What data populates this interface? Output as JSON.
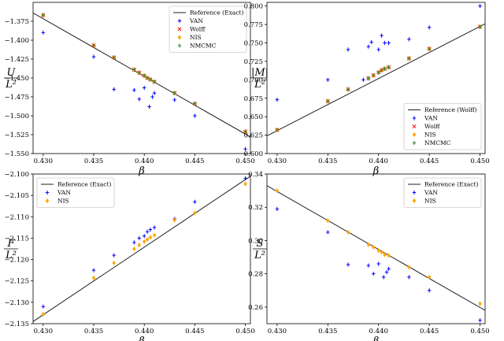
{
  "chart_data": [
    {
      "type": "scatter",
      "xlabel": "β",
      "ylabel_num": "U",
      "ylabel_den": "L²",
      "xlim": [
        0.429,
        0.4505
      ],
      "ylim": [
        -1.55,
        -1.35
      ],
      "xticks": [
        "0.430",
        "0.435",
        "0.440",
        "0.445",
        "0.450"
      ],
      "yticks": [
        "−1.375",
        "−1.400",
        "−1.425",
        "−1.450",
        "−1.475",
        "−1.500",
        "−1.525",
        "−1.550"
      ],
      "ytick_values": [
        -1.375,
        -1.4,
        -1.425,
        -1.45,
        -1.475,
        -1.5,
        -1.525,
        -1.55
      ],
      "legend_position": "top-right",
      "legend": [
        "Reference (Exact)",
        "VAN",
        "Wolff",
        "NIS",
        "NMCMC"
      ],
      "reference_line": {
        "name": "Reference (Exact)",
        "x": [
          0.429,
          0.4505
        ],
        "y": [
          -1.364,
          -1.528
        ]
      },
      "series": [
        {
          "name": "VAN",
          "color": "#0000ff",
          "marker": "cross",
          "x": [
            0.43,
            0.435,
            0.437,
            0.439,
            0.4395,
            0.44,
            0.4405,
            0.4408,
            0.441,
            0.443,
            0.445,
            0.45
          ],
          "y": [
            -1.39,
            -1.422,
            -1.465,
            -1.466,
            -1.478,
            -1.463,
            -1.488,
            -1.475,
            -1.47,
            -1.479,
            -1.5,
            -1.544
          ]
        },
        {
          "name": "Wolff",
          "color": "#ff0000",
          "marker": "x",
          "x": [
            0.43,
            0.435,
            0.437,
            0.439,
            0.4395,
            0.44,
            0.4403,
            0.4406,
            0.441,
            0.443,
            0.445,
            0.45
          ],
          "y": [
            -1.367,
            -1.407,
            -1.423,
            -1.439,
            -1.443,
            -1.447,
            -1.45,
            -1.452,
            -1.455,
            -1.47,
            -1.484,
            -1.521
          ]
        },
        {
          "name": "NIS",
          "color": "#ffa500",
          "marker": "dot",
          "x": [
            0.43,
            0.435,
            0.437,
            0.439,
            0.4395,
            0.44,
            0.4403,
            0.4406,
            0.441,
            0.443,
            0.445,
            0.45
          ],
          "y": [
            -1.367,
            -1.407,
            -1.423,
            -1.439,
            -1.443,
            -1.447,
            -1.45,
            -1.452,
            -1.455,
            -1.47,
            -1.484,
            -1.521
          ]
        },
        {
          "name": "NMCMC",
          "color": "#2e7d32",
          "marker": "cross",
          "x": [
            0.43,
            0.435,
            0.437,
            0.439,
            0.4395,
            0.44,
            0.4403,
            0.4406,
            0.441,
            0.443,
            0.445,
            0.45
          ],
          "y": [
            -1.367,
            -1.407,
            -1.423,
            -1.439,
            -1.443,
            -1.447,
            -1.45,
            -1.452,
            -1.455,
            -1.47,
            -1.484,
            -1.521
          ]
        }
      ]
    },
    {
      "type": "scatter",
      "xlabel": "β",
      "ylabel_num": "|M|",
      "ylabel_den": "L²",
      "xlim": [
        0.429,
        0.4505
      ],
      "ylim": [
        0.6,
        0.805
      ],
      "xticks": [
        "0.430",
        "0.435",
        "0.440",
        "0.445",
        "0.450"
      ],
      "yticks": [
        "0.800",
        "0.775",
        "0.750",
        "0.725",
        "0.700",
        "0.675",
        "0.650",
        "0.625",
        "0.600"
      ],
      "ytick_values": [
        0.8,
        0.775,
        0.75,
        0.725,
        0.7,
        0.675,
        0.65,
        0.625,
        0.6
      ],
      "legend_position": "bottom-right",
      "legend": [
        "Reference (Wolff)",
        "VAN",
        "Wolff",
        "NIS",
        "NMCMC"
      ],
      "reference_line": {
        "name": "Reference (Wolff)",
        "x": [
          0.429,
          0.4505
        ],
        "y": [
          0.624,
          0.776
        ]
      },
      "series": [
        {
          "name": "VAN",
          "color": "#0000ff",
          "marker": "cross",
          "x": [
            0.43,
            0.435,
            0.437,
            0.4385,
            0.439,
            0.4393,
            0.44,
            0.4403,
            0.4406,
            0.441,
            0.443,
            0.445,
            0.45
          ],
          "y": [
            0.673,
            0.7,
            0.741,
            0.7,
            0.745,
            0.751,
            0.741,
            0.76,
            0.75,
            0.75,
            0.755,
            0.771,
            0.8
          ]
        },
        {
          "name": "Wolff",
          "color": "#ff0000",
          "marker": "x",
          "x": [
            0.43,
            0.435,
            0.437,
            0.439,
            0.4395,
            0.44,
            0.4403,
            0.4406,
            0.441,
            0.443,
            0.445,
            0.45
          ],
          "y": [
            0.632,
            0.671,
            0.687,
            0.702,
            0.706,
            0.71,
            0.713,
            0.715,
            0.717,
            0.729,
            0.742,
            0.772
          ]
        },
        {
          "name": "NIS",
          "color": "#ffa500",
          "marker": "dot",
          "x": [
            0.43,
            0.435,
            0.437,
            0.439,
            0.4395,
            0.44,
            0.4403,
            0.4406,
            0.441,
            0.443,
            0.445,
            0.45
          ],
          "y": [
            0.632,
            0.671,
            0.687,
            0.702,
            0.706,
            0.71,
            0.713,
            0.715,
            0.717,
            0.729,
            0.742,
            0.772
          ]
        },
        {
          "name": "NMCMC",
          "color": "#2e7d32",
          "marker": "cross",
          "x": [
            0.43,
            0.435,
            0.437,
            0.439,
            0.4395,
            0.44,
            0.4403,
            0.4406,
            0.441,
            0.443,
            0.445,
            0.45
          ],
          "y": [
            0.632,
            0.671,
            0.687,
            0.702,
            0.706,
            0.71,
            0.713,
            0.715,
            0.717,
            0.729,
            0.742,
            0.772
          ]
        }
      ]
    },
    {
      "type": "scatter",
      "xlabel": "β",
      "ylabel_num": "F",
      "ylabel_den": "L²",
      "xlim": [
        0.429,
        0.4505
      ],
      "ylim": [
        -2.135,
        -2.1
      ],
      "xticks": [
        "0.430",
        "0.435",
        "0.440",
        "0.445",
        "0.450"
      ],
      "yticks": [
        "−2.100",
        "−2.105",
        "−2.110",
        "−2.115",
        "−2.120",
        "−2.125",
        "−2.130",
        "−2.135"
      ],
      "ytick_values": [
        -2.1,
        -2.105,
        -2.11,
        -2.115,
        -2.12,
        -2.125,
        -2.13,
        -2.135
      ],
      "legend_position": "top-left",
      "legend": [
        "Reference (Exact)",
        "VAN",
        "NIS"
      ],
      "reference_line": {
        "name": "Reference (Exact)",
        "x": [
          0.429,
          0.4505
        ],
        "y": [
          -2.1345,
          -2.1005
        ]
      },
      "series": [
        {
          "name": "VAN",
          "color": "#0000ff",
          "marker": "cross",
          "x": [
            0.43,
            0.435,
            0.437,
            0.439,
            0.4395,
            0.44,
            0.4403,
            0.4406,
            0.441,
            0.443,
            0.445,
            0.45
          ],
          "y": [
            -2.131,
            -2.1225,
            -2.119,
            -2.116,
            -2.115,
            -2.1145,
            -2.1135,
            -2.113,
            -2.1125,
            -2.1105,
            -2.1065,
            -2.101
          ]
        },
        {
          "name": "NIS",
          "color": "#ffa500",
          "marker": "dot",
          "x": [
            0.43,
            0.435,
            0.437,
            0.439,
            0.4395,
            0.44,
            0.4403,
            0.4406,
            0.441,
            0.443,
            0.445,
            0.45
          ],
          "y": [
            -2.1328,
            -2.1243,
            -2.1208,
            -2.1175,
            -2.1166,
            -2.1158,
            -2.1153,
            -2.1148,
            -2.1143,
            -2.1108,
            -2.1091,
            -2.1023
          ]
        }
      ]
    },
    {
      "type": "scatter",
      "xlabel": "β",
      "ylabel_num": "S",
      "ylabel_den": "L²",
      "xlim": [
        0.429,
        0.4505
      ],
      "ylim": [
        0.25,
        0.34
      ],
      "xticks": [
        "0.430",
        "0.435",
        "0.440",
        "0.445",
        "0.450"
      ],
      "yticks": [
        "0.34",
        "0.32",
        "0.30",
        "0.28",
        "0.26"
      ],
      "ytick_values": [
        0.34,
        0.32,
        0.3,
        0.28,
        0.26
      ],
      "legend_position": "top-right",
      "legend": [
        "Reference (Exact)",
        "VAN",
        "NIS"
      ],
      "reference_line": {
        "name": "Reference (Exact)",
        "x": [
          0.429,
          0.4505
        ],
        "y": [
          0.333,
          0.258
        ]
      },
      "series": [
        {
          "name": "VAN",
          "color": "#0000ff",
          "marker": "cross",
          "x": [
            0.43,
            0.435,
            0.437,
            0.439,
            0.4395,
            0.44,
            0.4405,
            0.4408,
            0.441,
            0.443,
            0.445,
            0.45
          ],
          "y": [
            0.319,
            0.305,
            0.2855,
            0.285,
            0.28,
            0.286,
            0.278,
            0.281,
            0.283,
            0.278,
            0.27,
            0.252
          ]
        },
        {
          "name": "NIS",
          "color": "#ffa500",
          "marker": "dot",
          "x": [
            0.43,
            0.435,
            0.437,
            0.439,
            0.4395,
            0.44,
            0.4403,
            0.4406,
            0.441,
            0.443,
            0.445,
            0.45
          ],
          "y": [
            0.33,
            0.312,
            0.305,
            0.2975,
            0.296,
            0.294,
            0.293,
            0.2915,
            0.291,
            0.284,
            0.278,
            0.262
          ]
        }
      ]
    }
  ]
}
